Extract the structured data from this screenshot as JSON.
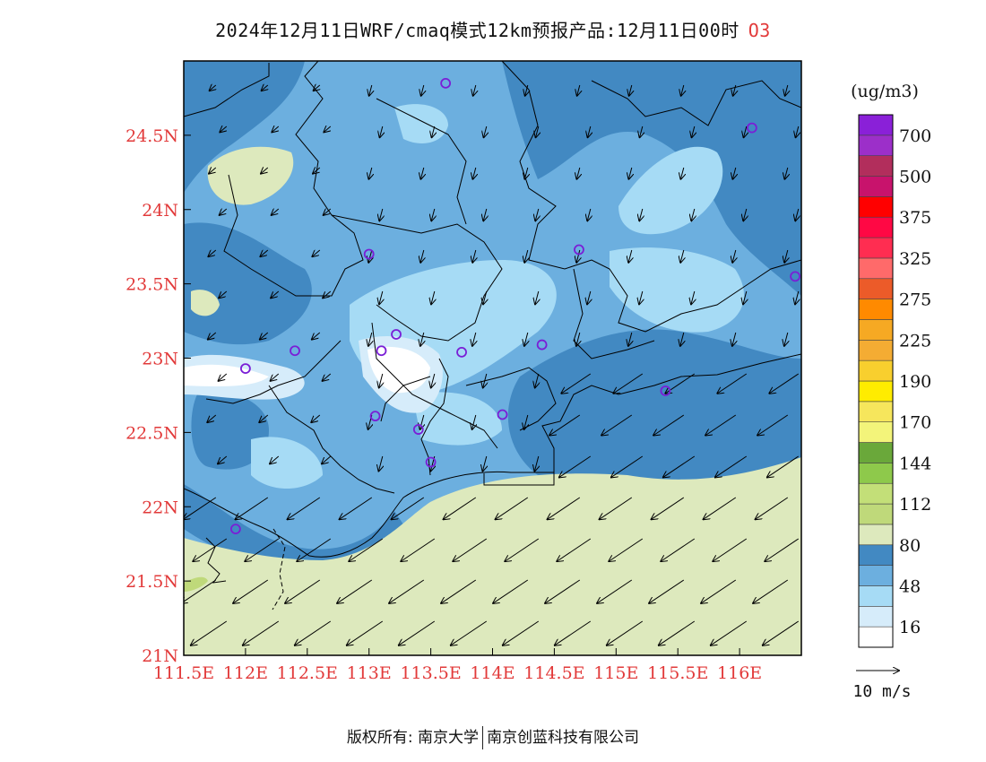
{
  "title": {
    "text": "2024年12月11日WRF/cmaq模式12km预报产品:12月11日00时",
    "variable": "O3"
  },
  "colorbar": {
    "unit": "(ug/m3)",
    "bins": [
      {
        "color": "#ffffff"
      },
      {
        "color": "#d6ecfa"
      },
      {
        "color": "#a6dbf5"
      },
      {
        "color": "#6cafdf"
      },
      {
        "color": "#4289c2"
      },
      {
        "color": "#dde9bd"
      },
      {
        "color": "#bfd97a"
      },
      {
        "color": "#c3df78"
      },
      {
        "color": "#8ec94b"
      },
      {
        "color": "#6aa83a"
      },
      {
        "color": "#f3f47a"
      },
      {
        "color": "#f6e65c"
      },
      {
        "color": "#ffec00"
      },
      {
        "color": "#f8cf2e"
      },
      {
        "color": "#f4ac33"
      },
      {
        "color": "#f6a923"
      },
      {
        "color": "#ff8a00"
      },
      {
        "color": "#ec5b29"
      },
      {
        "color": "#ff6a6a"
      },
      {
        "color": "#ff2d51"
      },
      {
        "color": "#ff0844"
      },
      {
        "color": "#ff0000"
      },
      {
        "color": "#c8136c"
      },
      {
        "color": "#b22e5c"
      },
      {
        "color": "#9c2fc9"
      },
      {
        "color": "#8a20d8"
      }
    ],
    "labels": [
      "16",
      "48",
      "80",
      "112",
      "144",
      "170",
      "190",
      "225",
      "275",
      "325",
      "375",
      "500",
      "700"
    ]
  },
  "axes": {
    "x_ticks": [
      "111.5E",
      "112E",
      "112.5E",
      "113E",
      "113.5E",
      "114E",
      "114.5E",
      "115E",
      "115.5E",
      "116E"
    ],
    "y_ticks": [
      "21N",
      "21.5N",
      "22N",
      "22.5N",
      "23N",
      "23.5N",
      "24N",
      "24.5N"
    ],
    "x_range": [
      111.5,
      116.5
    ],
    "y_range": [
      21.0,
      25.0
    ]
  },
  "wind_scale": {
    "label": "10 m/s"
  },
  "colors": {
    "label_red": "#e23a3a",
    "station": "#7a1ed6",
    "outline": "#000000"
  },
  "stations": [
    {
      "lon": 113.62,
      "lat": 24.85
    },
    {
      "lon": 116.1,
      "lat": 24.55
    },
    {
      "lon": 113.0,
      "lat": 23.7
    },
    {
      "lon": 114.7,
      "lat": 23.73
    },
    {
      "lon": 116.45,
      "lat": 23.55
    },
    {
      "lon": 112.4,
      "lat": 23.05
    },
    {
      "lon": 113.1,
      "lat": 23.05
    },
    {
      "lon": 113.22,
      "lat": 23.16
    },
    {
      "lon": 113.75,
      "lat": 23.04
    },
    {
      "lon": 114.4,
      "lat": 23.09
    },
    {
      "lon": 112.0,
      "lat": 22.93
    },
    {
      "lon": 113.05,
      "lat": 22.61
    },
    {
      "lon": 113.4,
      "lat": 22.52
    },
    {
      "lon": 114.08,
      "lat": 22.62
    },
    {
      "lon": 113.5,
      "lat": 22.3
    },
    {
      "lon": 115.4,
      "lat": 22.78
    },
    {
      "lon": 111.92,
      "lat": 21.85
    }
  ],
  "footer": {
    "left": "版权所有: 南京大学",
    "right": "南京创蓝科技有限公司"
  }
}
